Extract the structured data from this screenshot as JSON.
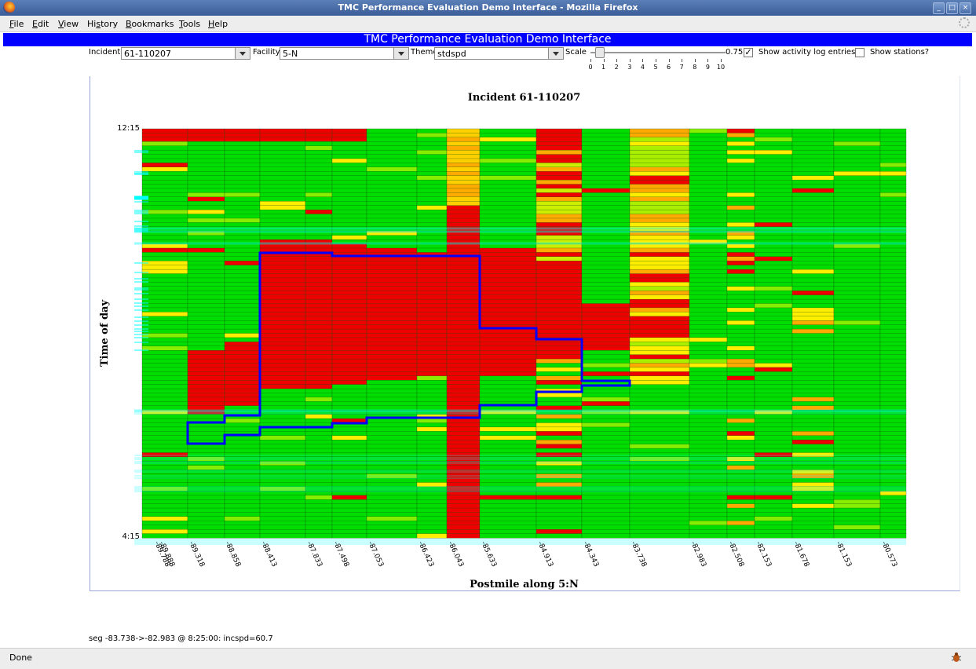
{
  "window": {
    "title": "TMC Performance Evaluation Demo Interface - Mozilla Firefox"
  },
  "menu": [
    {
      "pre": "",
      "u": "F",
      "post": "ile",
      "name": "file"
    },
    {
      "pre": "",
      "u": "E",
      "post": "dit",
      "name": "edit"
    },
    {
      "pre": "",
      "u": "V",
      "post": "iew",
      "name": "view"
    },
    {
      "pre": "Hi",
      "u": "s",
      "post": "tory",
      "name": "history"
    },
    {
      "pre": "",
      "u": "B",
      "post": "ookmarks",
      "name": "bookmarks"
    },
    {
      "pre": "",
      "u": "T",
      "post": "ools",
      "name": "tools"
    },
    {
      "pre": "",
      "u": "H",
      "post": "elp",
      "name": "help"
    }
  ],
  "app": {
    "title": "TMC Performance Evaluation Demo Interface"
  },
  "controls": {
    "incident_label": "Incident:",
    "incident_value": "61-110207",
    "facility_label": "Facility:",
    "facility_value": "5-N",
    "theme_label": "Theme",
    "theme_value": "stdspd",
    "scale_label": "Scale",
    "scale_value": "0.75",
    "scale_ticks": [
      "0",
      "1",
      "2",
      "3",
      "4",
      "5",
      "6",
      "7",
      "8",
      "9",
      "10"
    ],
    "show_log_label": "Show activity log entries?",
    "show_log_checked": true,
    "show_log_mark": "✓",
    "show_stations_label": "Show stations?",
    "show_stations_checked": false
  },
  "chart_data": {
    "type": "heatmap",
    "title": "Incident 61-110207",
    "xlabel": "Postmile along 5:N",
    "ylabel": "Time of day",
    "y_top_label": "12:15",
    "y_bottom_label": "4:15",
    "x_tick_labels": [
      "-89.788",
      "-89.888",
      "-89.318",
      "-88.858",
      "-88.413",
      "-87.833",
      "-87.498",
      "-87.053",
      "-86.423",
      "-86.043",
      "-85.633",
      "-84.913",
      "-84.343",
      "-83.738",
      "-82.983",
      "-82.508",
      "-82.153",
      "-81.678",
      "-81.153",
      "-80.573"
    ],
    "colors": {
      "free_flow": "#00dd00",
      "congested": "#ee0000",
      "slow": "#ffaa00",
      "incident_outline": "#0000ff",
      "log_entry": "#00ffff"
    }
  },
  "status": {
    "readout": "seg -83.738->-82.983 @ 8:25:00: incspd=60.7",
    "browser": "Done"
  }
}
